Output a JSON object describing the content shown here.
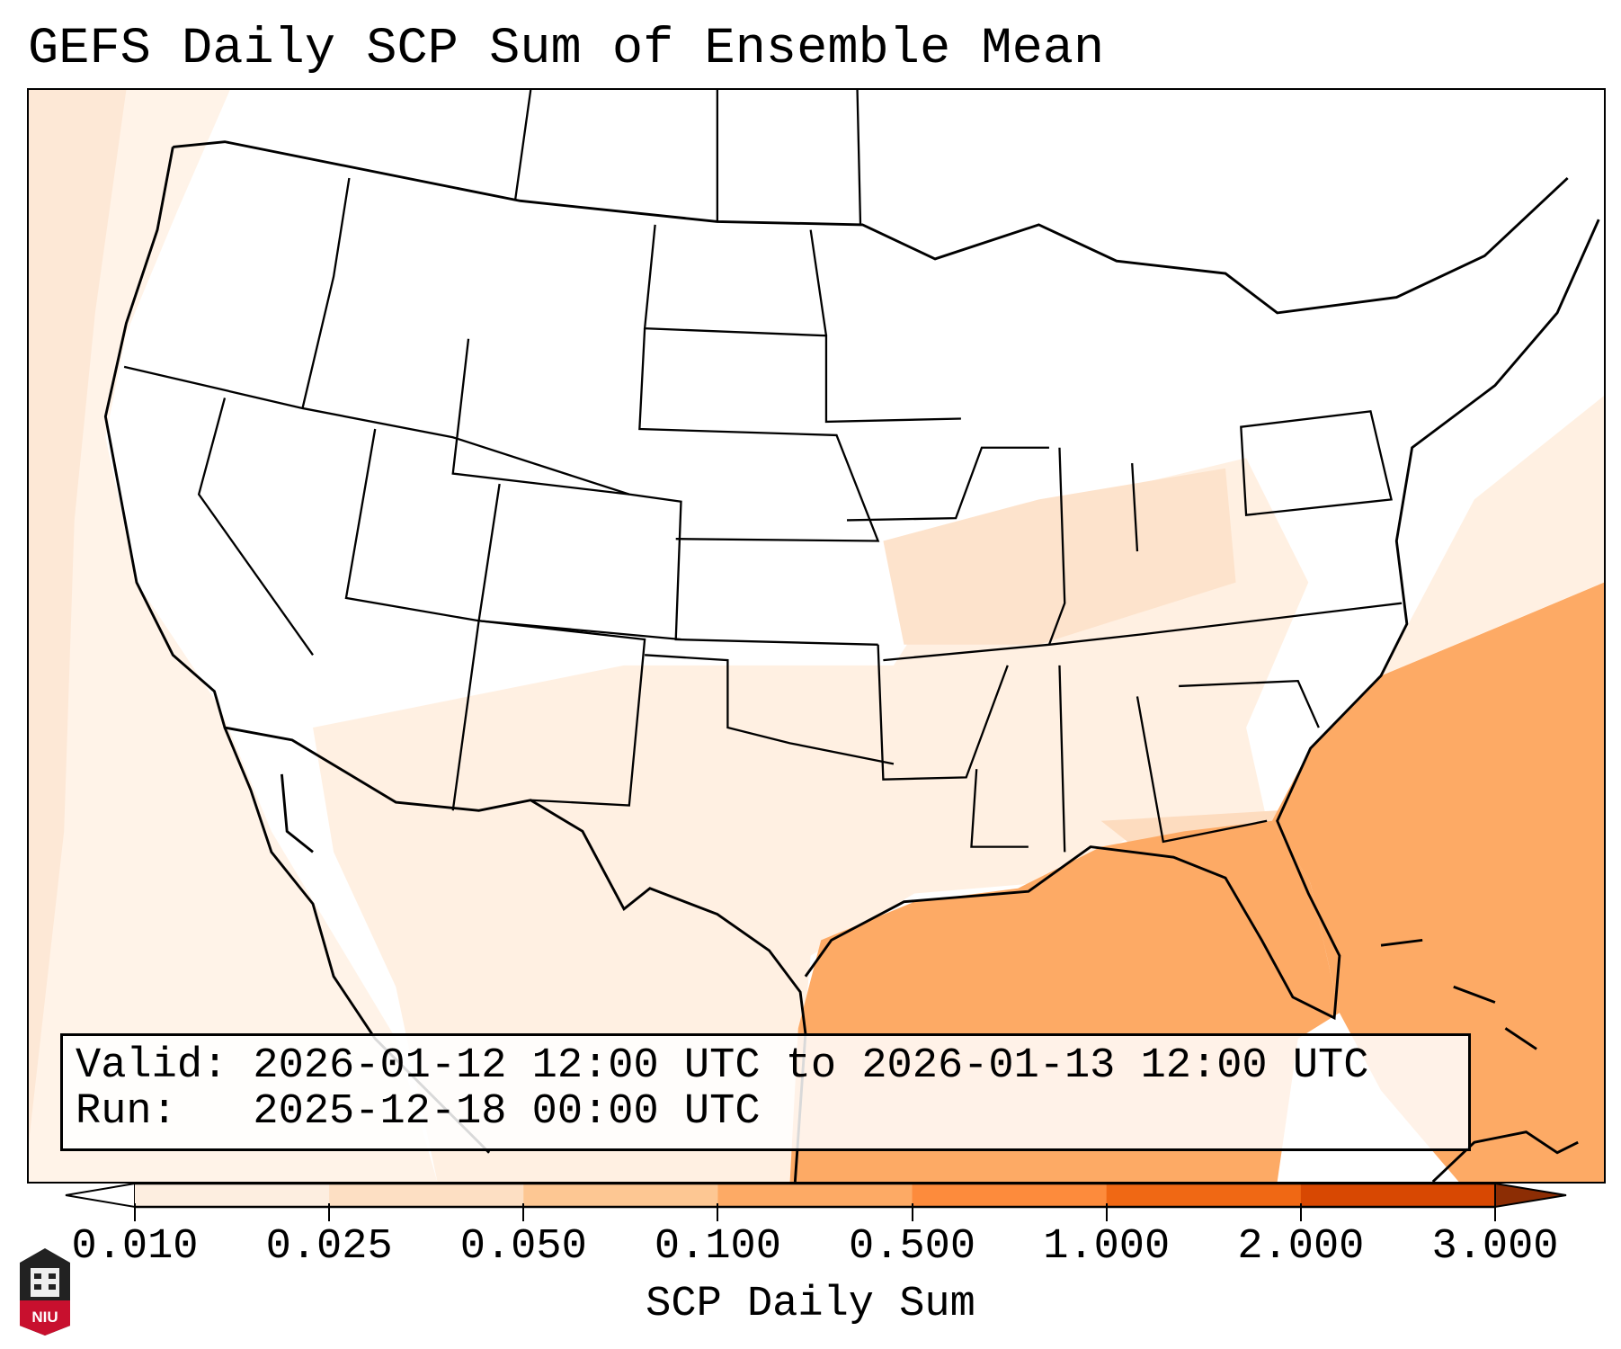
{
  "title": "GEFS Daily SCP Sum of Ensemble Mean",
  "info": {
    "valid_line": "Valid: 2026-01-12 12:00 UTC to 2026-01-13 12:00 UTC",
    "run_line": "Run:   2025-12-18 00:00 UTC"
  },
  "colorbar": {
    "label": "SCP Daily Sum",
    "ticks": [
      "0.010",
      "0.025",
      "0.050",
      "0.100",
      "0.500",
      "1.000",
      "2.000",
      "3.000"
    ],
    "colors": [
      "#fdeee0",
      "#fddfc3",
      "#fdc793",
      "#fdaa65",
      "#fd8b3c",
      "#f06814",
      "#d84802"
    ],
    "under_color": "#ffffff",
    "over_color": "#8c2d04"
  },
  "map": {
    "background_color": "#fff6ee",
    "gulf_color": "#fdaa65",
    "light_color": "#fde3cc"
  },
  "logo": {
    "text": "NIU"
  }
}
